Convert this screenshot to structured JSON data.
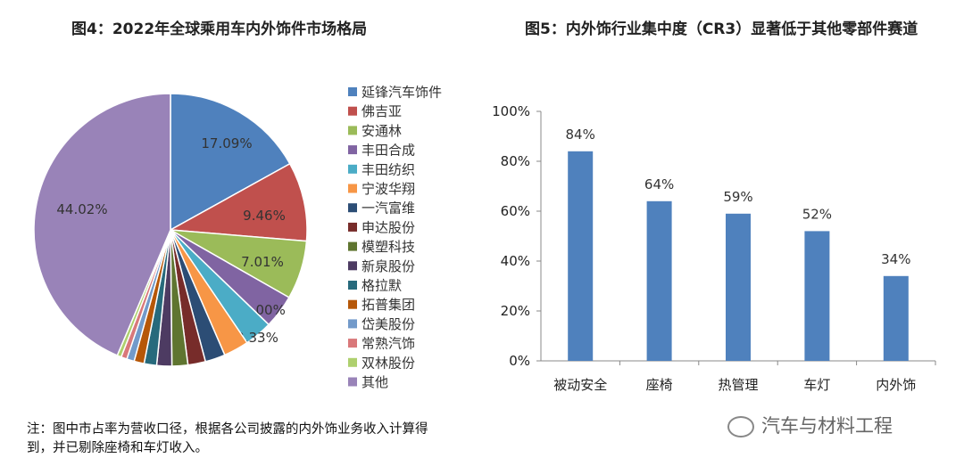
{
  "figures": {
    "pie_title": "图4：2022年全球乘用车内外饰件市场格局",
    "bar_title": "图5：内外饰行业集中度（CR3）显著低于其他零部件赛道"
  },
  "note": "注：图中市占率为营收口径，根据各公司披露的内外饰业务收入计算得到，并已剔除座椅和车灯收入。",
  "watermark": "汽车与材料工程",
  "chart_data": [
    {
      "type": "pie",
      "title": "图4：2022年全球乘用车内外饰件市场格局",
      "legend_position": "right",
      "slices": [
        {
          "name": "延锋汽车饰件",
          "value": 17.09,
          "label": "17.09%",
          "color": "#4f81bd"
        },
        {
          "name": "佛吉亚",
          "value": 9.46,
          "label": "9.46%",
          "color": "#c0504d"
        },
        {
          "name": "安通林",
          "value": 7.01,
          "label": "7.01%",
          "color": "#9bbb59"
        },
        {
          "name": "丰田合成",
          "value": 4.0,
          "label": "4.00%",
          "color": "#8064a2"
        },
        {
          "name": "丰田纺织",
          "value": 3.33,
          "label": "3.33%",
          "color": "#4bacc6"
        },
        {
          "name": "宁波华翔",
          "value": 3.0,
          "label": "",
          "color": "#f79646"
        },
        {
          "name": "一汽富维",
          "value": 2.4,
          "label": "",
          "color": "#2c4d75"
        },
        {
          "name": "申达股份",
          "value": 2.1,
          "label": "",
          "color": "#772c2a"
        },
        {
          "name": "模塑科技",
          "value": 1.9,
          "label": "",
          "color": "#5f7530"
        },
        {
          "name": "新泉股份",
          "value": 1.8,
          "label": "",
          "color": "#4d3b62"
        },
        {
          "name": "格拉默",
          "value": 1.5,
          "label": "",
          "color": "#276a7c"
        },
        {
          "name": "拓普集团",
          "value": 1.2,
          "label": "",
          "color": "#b65708"
        },
        {
          "name": "岱美股份",
          "value": 0.9,
          "label": "",
          "color": "#729aca"
        },
        {
          "name": "常熟汽饰",
          "value": 0.7,
          "label": "",
          "color": "#d9787a"
        },
        {
          "name": "双林股份",
          "value": 0.5,
          "label": "",
          "color": "#aed06e"
        },
        {
          "name": "其他",
          "value": 44.02,
          "label": "44.02%",
          "color": "#9983b8"
        }
      ]
    },
    {
      "type": "bar",
      "title": "图5：内外饰行业集中度（CR3）显著低于其他零部件赛道",
      "categories": [
        "被动安全",
        "座椅",
        "热管理",
        "车灯",
        "内外饰"
      ],
      "values": [
        84,
        64,
        59,
        52,
        34
      ],
      "value_labels": [
        "84%",
        "64%",
        "59%",
        "52%",
        "34%"
      ],
      "ylim": [
        0,
        100
      ],
      "yticks": [
        "0%",
        "20%",
        "40%",
        "60%",
        "80%",
        "100%"
      ],
      "grid": false,
      "color": "#4f81bd"
    }
  ]
}
